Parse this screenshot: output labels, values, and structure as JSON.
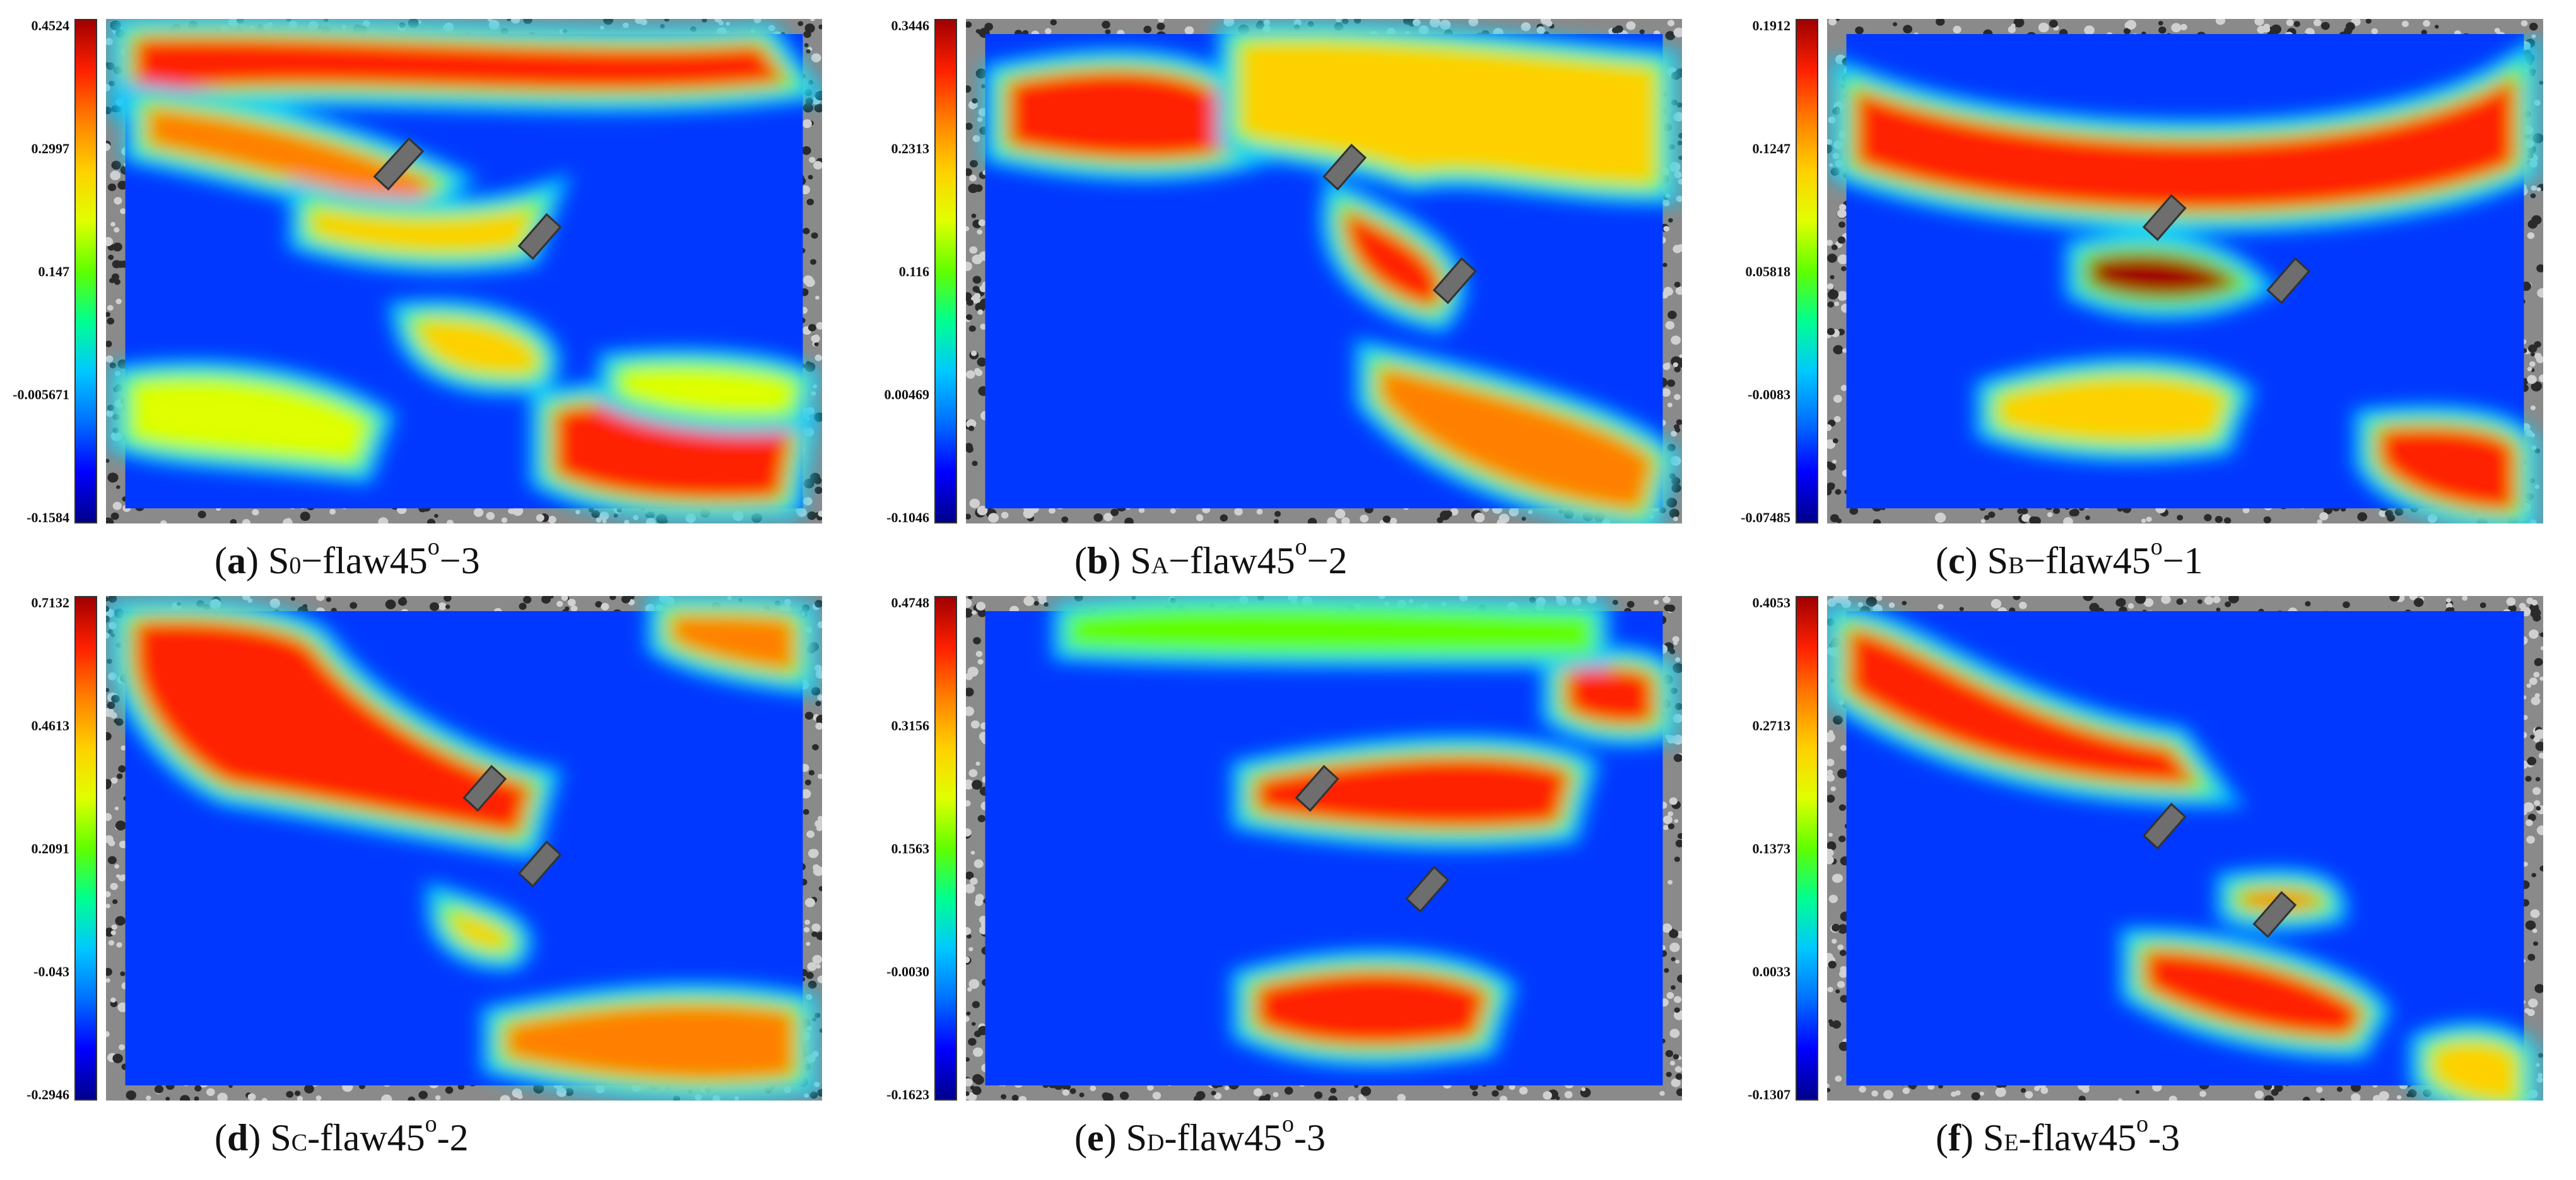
{
  "panels": [
    {
      "letter": "a",
      "specimen_sub": "0",
      "sep": "−flaw45",
      "suffix": "−3",
      "ticks": [
        "0.4524",
        "0.2997",
        "0.147",
        "-0.005671",
        "-0.1584"
      ]
    },
    {
      "letter": "b",
      "specimen_sub": "A",
      "sep": "−flaw45",
      "suffix": "−2",
      "ticks": [
        "0.3446",
        "0.2313",
        "0.116",
        "0.00469",
        "-0.1046"
      ]
    },
    {
      "letter": "c",
      "specimen_sub": "B",
      "sep": "−flaw45",
      "suffix": "−1",
      "ticks": [
        "0.1912",
        "0.1247",
        "0.05818",
        "-0.0083",
        "-0.07485"
      ]
    },
    {
      "letter": "d",
      "specimen_sub": "C",
      "sep": "-flaw45",
      "suffix": "-2",
      "ticks": [
        "0.7132",
        "0.4613",
        "0.2091",
        "-0.043",
        "-0.2946"
      ]
    },
    {
      "letter": "e",
      "specimen_sub": "D",
      "sep": "-flaw45",
      "suffix": "-3",
      "ticks": [
        "0.4748",
        "0.3156",
        "0.1563",
        "-0.0030",
        "-0.1623"
      ]
    },
    {
      "letter": "f",
      "specimen_sub": "E",
      "sep": "-flaw45",
      "suffix": "-3",
      "ticks": [
        "0.4053",
        "0.2713",
        "0.1373",
        "0.0033",
        "-0.1307"
      ]
    }
  ],
  "caption_prefix": "S",
  "degree_mark": "o",
  "colormap": [
    "#00008b",
    "#0000ff",
    "#0070ff",
    "#00c8ff",
    "#00ff90",
    "#60ff00",
    "#e0ff00",
    "#ffd000",
    "#ff8000",
    "#ff2000",
    "#a00000"
  ]
}
